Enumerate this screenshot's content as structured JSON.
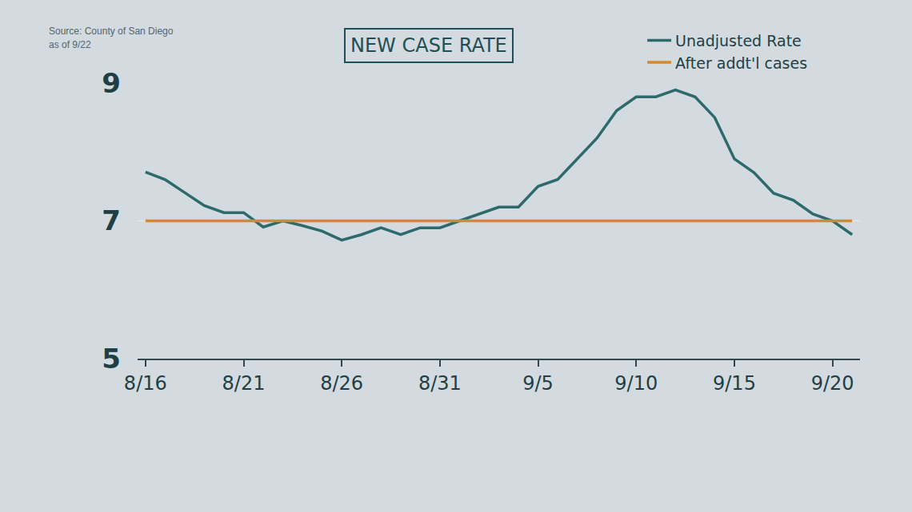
{
  "chart_data": {
    "type": "line",
    "title": "NEW CASE RATE",
    "annotations": [
      "Source: County of San Diego",
      "as of 9/22"
    ],
    "categories": [
      "8/16",
      null,
      null,
      null,
      null,
      "8/21",
      null,
      null,
      null,
      null,
      "8/26",
      null,
      null,
      null,
      null,
      "8/31",
      null,
      null,
      null,
      null,
      "9/5",
      null,
      null,
      null,
      null,
      "9/10",
      null,
      null,
      null,
      null,
      "9/15",
      null,
      null,
      null,
      null,
      "9/20",
      null
    ],
    "series": [
      {
        "name": "Unadjusted Rate",
        "color": "#2e6a6c",
        "values": [
          7.71,
          7.6,
          7.41,
          7.22,
          7.12,
          7.12,
          6.91,
          7.0,
          6.93,
          6.85,
          6.72,
          6.8,
          6.9,
          6.8,
          6.9,
          6.9,
          7.0,
          7.1,
          7.2,
          7.2,
          7.5,
          7.6,
          7.9,
          8.2,
          8.6,
          8.8,
          8.8,
          8.9,
          8.8,
          8.5,
          7.9,
          7.7,
          7.4,
          7.3,
          7.1,
          7.0,
          6.8
        ]
      },
      {
        "name": "After addt'l cases",
        "color": "#d4892a",
        "values": [
          7,
          7,
          7,
          7,
          7,
          7,
          7,
          7,
          7,
          7,
          7,
          7,
          7,
          7,
          7,
          7,
          7,
          7,
          7,
          7,
          7,
          7,
          7,
          7,
          7,
          7,
          7,
          7,
          7,
          7,
          7,
          7,
          7,
          7,
          7,
          7,
          7
        ]
      }
    ],
    "ylim": [
      5,
      9
    ],
    "yticks": [
      5,
      7,
      9
    ],
    "grid": true,
    "legend": "upper right"
  }
}
